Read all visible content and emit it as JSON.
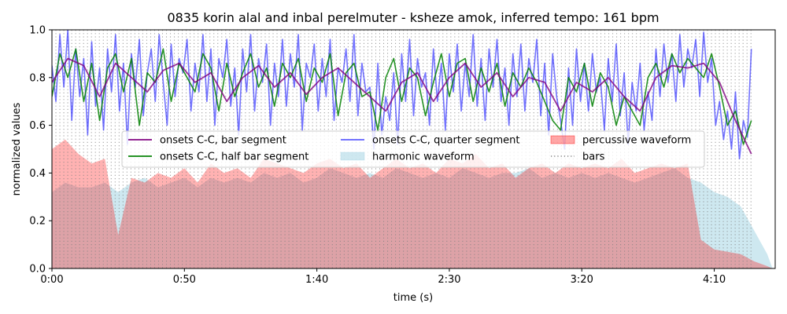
{
  "chart_data": {
    "type": "line",
    "title": "0835 korin alal and inbal perelmuter - ksheze amok, inferred tempo: 161 bpm",
    "xlabel": "time (s)",
    "ylabel": "normalized values",
    "xlim": [
      0,
      273
    ],
    "ylim": [
      0,
      1.0
    ],
    "x_ticks": [
      0,
      50,
      100,
      150,
      200,
      250
    ],
    "x_tick_labels": [
      "0:00",
      "0:50",
      "1:40",
      "2:30",
      "3:20",
      "4:10"
    ],
    "y_ticks": [
      0.0,
      0.2,
      0.4,
      0.6,
      0.8,
      1.0
    ],
    "y_tick_labels": [
      "0.0",
      "0.2",
      "0.4",
      "0.6",
      "0.8",
      "1.0"
    ],
    "grid": false,
    "legend_position": "center",
    "tempo_bpm": 161,
    "bars_end_s": 265,
    "colors": {
      "bar_segment": "#800080",
      "half_bar_segment": "#008000",
      "quarter_segment": "#0000ff",
      "harmonic": "#add8e6",
      "percussive": "#ff0000",
      "bars": "#808080"
    },
    "legend": [
      {
        "key": "bar_segment",
        "label": "onsets C-C, bar segment",
        "style": "line"
      },
      {
        "key": "half_bar_segment",
        "label": "onsets C-C, half bar segment",
        "style": "line"
      },
      {
        "key": "quarter_segment",
        "label": "onsets C-C, quarter segment",
        "style": "line"
      },
      {
        "key": "harmonic",
        "label": "harmonic waveform",
        "style": "fill"
      },
      {
        "key": "percussive",
        "label": "percussive waveform",
        "style": "fill"
      },
      {
        "key": "bars",
        "label": "bars",
        "style": "dotted"
      }
    ],
    "series": [
      {
        "key": "bar_segment",
        "x": [
          0,
          6,
          12,
          18,
          24,
          30,
          36,
          42,
          48,
          54,
          60,
          66,
          72,
          78,
          84,
          90,
          96,
          102,
          108,
          114,
          120,
          126,
          132,
          138,
          144,
          150,
          156,
          162,
          168,
          174,
          180,
          186,
          192,
          198,
          204,
          210,
          216,
          222,
          228,
          234,
          240,
          246,
          252,
          258,
          264
        ],
        "values": [
          0.78,
          0.88,
          0.85,
          0.72,
          0.86,
          0.8,
          0.74,
          0.83,
          0.86,
          0.78,
          0.82,
          0.7,
          0.8,
          0.85,
          0.76,
          0.82,
          0.73,
          0.8,
          0.84,
          0.78,
          0.72,
          0.66,
          0.78,
          0.82,
          0.7,
          0.8,
          0.86,
          0.76,
          0.82,
          0.72,
          0.8,
          0.78,
          0.66,
          0.78,
          0.74,
          0.8,
          0.72,
          0.66,
          0.8,
          0.85,
          0.84,
          0.86,
          0.78,
          0.62,
          0.48
        ]
      },
      {
        "key": "half_bar_segment",
        "x": [
          0,
          3,
          6,
          9,
          12,
          15,
          18,
          21,
          24,
          27,
          30,
          33,
          36,
          39,
          42,
          45,
          48,
          51,
          54,
          57,
          60,
          63,
          66,
          69,
          72,
          75,
          78,
          81,
          84,
          87,
          90,
          93,
          96,
          99,
          102,
          105,
          108,
          111,
          114,
          117,
          120,
          123,
          126,
          129,
          132,
          135,
          138,
          141,
          144,
          147,
          150,
          153,
          156,
          159,
          162,
          165,
          168,
          171,
          174,
          177,
          180,
          183,
          186,
          189,
          192,
          195,
          198,
          201,
          204,
          207,
          210,
          213,
          216,
          219,
          222,
          225,
          228,
          231,
          234,
          237,
          240,
          243,
          246,
          249,
          252,
          255,
          258,
          261,
          264
        ],
        "values": [
          0.72,
          0.9,
          0.8,
          0.92,
          0.7,
          0.86,
          0.62,
          0.84,
          0.9,
          0.74,
          0.88,
          0.6,
          0.82,
          0.78,
          0.92,
          0.7,
          0.86,
          0.8,
          0.74,
          0.9,
          0.84,
          0.66,
          0.86,
          0.72,
          0.82,
          0.9,
          0.76,
          0.84,
          0.68,
          0.86,
          0.8,
          0.88,
          0.7,
          0.84,
          0.78,
          0.9,
          0.64,
          0.82,
          0.86,
          0.72,
          0.74,
          0.58,
          0.8,
          0.88,
          0.7,
          0.84,
          0.8,
          0.64,
          0.78,
          0.9,
          0.72,
          0.86,
          0.88,
          0.7,
          0.84,
          0.74,
          0.86,
          0.68,
          0.82,
          0.76,
          0.84,
          0.78,
          0.7,
          0.62,
          0.58,
          0.8,
          0.74,
          0.86,
          0.68,
          0.82,
          0.76,
          0.6,
          0.72,
          0.66,
          0.6,
          0.8,
          0.86,
          0.76,
          0.9,
          0.82,
          0.88,
          0.84,
          0.8,
          0.9,
          0.76,
          0.6,
          0.66,
          0.52,
          0.62
        ]
      },
      {
        "key": "quarter_segment",
        "x": [
          0,
          1.5,
          3,
          4.5,
          6,
          7.5,
          9,
          10.5,
          12,
          13.5,
          15,
          16.5,
          18,
          19.5,
          21,
          22.5,
          24,
          25.5,
          27,
          28.5,
          30,
          31.5,
          33,
          34.5,
          36,
          37.5,
          39,
          40.5,
          42,
          43.5,
          45,
          46.5,
          48,
          49.5,
          51,
          52.5,
          54,
          55.5,
          57,
          58.5,
          60,
          61.5,
          63,
          64.5,
          66,
          67.5,
          69,
          70.5,
          72,
          73.5,
          75,
          76.5,
          78,
          79.5,
          81,
          82.5,
          84,
          85.5,
          87,
          88.5,
          90,
          91.5,
          93,
          94.5,
          96,
          97.5,
          99,
          100.5,
          102,
          103.5,
          105,
          106.5,
          108,
          109.5,
          111,
          112.5,
          114,
          115.5,
          117,
          118.5,
          120,
          121.5,
          123,
          124.5,
          126,
          127.5,
          129,
          130.5,
          132,
          133.5,
          135,
          136.5,
          138,
          139.5,
          141,
          142.5,
          144,
          145.5,
          147,
          148.5,
          150,
          151.5,
          153,
          154.5,
          156,
          157.5,
          159,
          160.5,
          162,
          163.5,
          165,
          166.5,
          168,
          169.5,
          171,
          172.5,
          174,
          175.5,
          177,
          178.5,
          180,
          181.5,
          183,
          184.5,
          186,
          187.5,
          189,
          190.5,
          192,
          193.5,
          195,
          196.5,
          198,
          199.5,
          201,
          202.5,
          204,
          205.5,
          207,
          208.5,
          210,
          211.5,
          213,
          214.5,
          216,
          217.5,
          219,
          220.5,
          222,
          223.5,
          225,
          226.5,
          228,
          229.5,
          231,
          232.5,
          234,
          235.5,
          237,
          238.5,
          240,
          241.5,
          243,
          244.5,
          246,
          247.5,
          249,
          250.5,
          252,
          253.5,
          255,
          256.5,
          258,
          259.5,
          261,
          262.5,
          264
        ],
        "values": [
          0.85,
          0.7,
          0.98,
          0.76,
          1.0,
          0.62,
          0.92,
          0.72,
          0.88,
          0.56,
          0.95,
          0.68,
          0.84,
          0.58,
          0.92,
          0.74,
          0.98,
          0.66,
          0.86,
          0.52,
          0.9,
          0.76,
          0.96,
          0.64,
          0.82,
          0.92,
          0.7,
          0.98,
          0.78,
          0.6,
          0.94,
          0.72,
          0.88,
          0.82,
          0.96,
          0.66,
          0.86,
          0.74,
          0.98,
          0.7,
          0.92,
          0.6,
          0.88,
          0.8,
          0.96,
          0.68,
          0.84,
          0.56,
          0.92,
          0.74,
          0.98,
          0.66,
          0.88,
          0.78,
          0.94,
          0.6,
          0.86,
          0.72,
          0.96,
          0.68,
          0.9,
          0.76,
          0.98,
          0.58,
          0.86,
          0.8,
          0.94,
          0.66,
          0.88,
          0.72,
          0.96,
          0.62,
          0.84,
          0.78,
          0.92,
          0.7,
          0.98,
          0.64,
          0.86,
          0.74,
          0.76,
          0.5,
          0.86,
          0.56,
          0.72,
          0.62,
          0.82,
          0.52,
          0.9,
          0.7,
          0.96,
          0.64,
          0.88,
          0.76,
          0.82,
          0.6,
          0.92,
          0.7,
          0.86,
          0.58,
          0.9,
          0.74,
          0.94,
          0.66,
          0.86,
          0.72,
          0.98,
          0.68,
          0.88,
          0.62,
          0.92,
          0.76,
          0.96,
          0.7,
          0.84,
          0.6,
          0.9,
          0.72,
          0.94,
          0.66,
          0.88,
          0.78,
          0.96,
          0.64,
          0.86,
          0.56,
          0.9,
          0.72,
          0.62,
          0.5,
          0.84,
          0.6,
          0.92,
          0.7,
          0.86,
          0.66,
          0.9,
          0.74,
          0.8,
          0.58,
          0.88,
          0.7,
          0.94,
          0.64,
          0.82,
          0.52,
          0.78,
          0.66,
          0.86,
          0.58,
          0.74,
          0.62,
          0.92,
          0.72,
          0.94,
          0.78,
          0.9,
          0.7,
          0.98,
          0.76,
          0.92,
          0.84,
          0.96,
          0.72,
          0.99,
          0.78,
          0.88,
          0.6,
          0.7,
          0.54,
          0.66,
          0.5,
          0.74,
          0.46,
          0.62,
          0.55,
          0.92
        ]
      }
    ],
    "harmonic_waveform": {
      "x": [
        0,
        5,
        10,
        15,
        20,
        25,
        30,
        35,
        40,
        45,
        50,
        55,
        60,
        65,
        70,
        75,
        80,
        85,
        90,
        95,
        100,
        105,
        110,
        115,
        120,
        125,
        130,
        135,
        140,
        145,
        150,
        155,
        160,
        165,
        170,
        175,
        180,
        185,
        190,
        195,
        200,
        205,
        210,
        215,
        220,
        225,
        230,
        235,
        240,
        245,
        250,
        255,
        260,
        265,
        270,
        272
      ],
      "values": [
        0.32,
        0.36,
        0.34,
        0.34,
        0.36,
        0.32,
        0.36,
        0.38,
        0.34,
        0.36,
        0.38,
        0.34,
        0.38,
        0.36,
        0.38,
        0.36,
        0.4,
        0.38,
        0.4,
        0.36,
        0.38,
        0.42,
        0.4,
        0.38,
        0.4,
        0.38,
        0.42,
        0.4,
        0.38,
        0.4,
        0.38,
        0.42,
        0.4,
        0.38,
        0.4,
        0.4,
        0.42,
        0.38,
        0.4,
        0.38,
        0.4,
        0.38,
        0.4,
        0.38,
        0.36,
        0.38,
        0.4,
        0.42,
        0.38,
        0.36,
        0.32,
        0.3,
        0.26,
        0.16,
        0.06,
        0.0
      ]
    },
    "percussive_waveform": {
      "x": [
        0,
        5,
        10,
        15,
        20,
        25,
        30,
        35,
        40,
        45,
        50,
        55,
        60,
        65,
        70,
        75,
        80,
        85,
        90,
        95,
        100,
        105,
        110,
        115,
        120,
        125,
        130,
        135,
        140,
        145,
        150,
        155,
        160,
        165,
        170,
        175,
        180,
        185,
        190,
        195,
        200,
        205,
        210,
        215,
        220,
        225,
        230,
        235,
        240,
        245,
        250,
        255,
        260,
        265,
        270,
        272
      ],
      "values": [
        0.5,
        0.54,
        0.48,
        0.44,
        0.46,
        0.14,
        0.38,
        0.36,
        0.4,
        0.38,
        0.42,
        0.36,
        0.44,
        0.4,
        0.42,
        0.38,
        0.46,
        0.44,
        0.42,
        0.4,
        0.44,
        0.46,
        0.42,
        0.44,
        0.38,
        0.42,
        0.46,
        0.42,
        0.44,
        0.4,
        0.46,
        0.44,
        0.48,
        0.42,
        0.44,
        0.38,
        0.42,
        0.44,
        0.4,
        0.44,
        0.42,
        0.44,
        0.42,
        0.46,
        0.4,
        0.42,
        0.44,
        0.42,
        0.44,
        0.12,
        0.08,
        0.07,
        0.06,
        0.03,
        0.01,
        0.0
      ]
    }
  }
}
